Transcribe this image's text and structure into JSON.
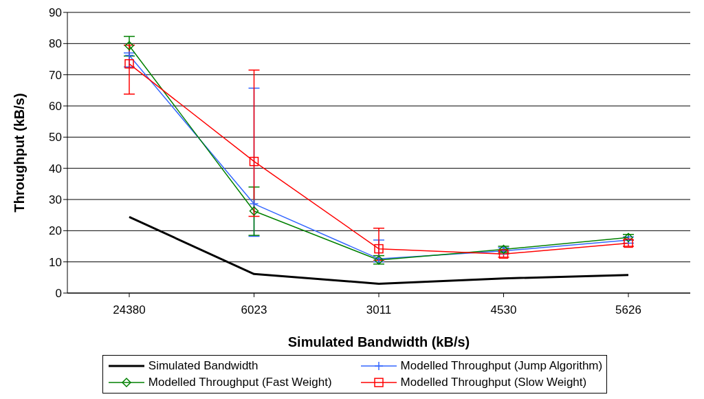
{
  "chart_data": {
    "type": "line",
    "xlabel": "Simulated Bandwidth (kB/s)",
    "ylabel": "Throughput (kB/s)",
    "categories": [
      "24380",
      "6023",
      "3011",
      "4530",
      "5626"
    ],
    "ylim": [
      0,
      90
    ],
    "yticks": [
      0,
      10,
      20,
      30,
      40,
      50,
      60,
      70,
      80,
      90
    ],
    "grid": "y",
    "legend": "bottom",
    "series": [
      {
        "name": "Simulated Bandwidth",
        "color": "#000000",
        "marker": "none",
        "values": [
          24.4,
          6.1,
          3.0,
          4.7,
          5.8
        ]
      },
      {
        "name": "Modelled Throughput (Jump Algorithm)",
        "color": "#3366ff",
        "marker": "cross",
        "values": [
          76.2,
          28.6,
          11.0,
          13.5,
          17.0
        ],
        "errors": [
          [
            72.5,
            77
          ],
          [
            18.2,
            65.7
          ],
          [
            10,
            17
          ],
          [
            12.5,
            14.5
          ],
          [
            16,
            18
          ]
        ]
      },
      {
        "name": "Modelled Throughput (Fast Weight)",
        "color": "#008000",
        "marker": "diamond",
        "values": [
          79.3,
          26.3,
          10.6,
          14.0,
          17.8
        ],
        "errors": [
          [
            76,
            82.3
          ],
          [
            18.5,
            34
          ],
          [
            9.3,
            12
          ],
          [
            13,
            15
          ],
          [
            17,
            18.8
          ]
        ]
      },
      {
        "name": "Modelled Throughput (Slow Weight)",
        "color": "#ff0000",
        "marker": "square",
        "values": [
          73.5,
          42.2,
          14.2,
          12.5,
          16.0
        ],
        "errors": [
          [
            63.8,
            79.5
          ],
          [
            24.6,
            71.5
          ],
          [
            10.5,
            20.8
          ],
          [
            11.5,
            13.5
          ],
          [
            15,
            17
          ]
        ]
      }
    ]
  }
}
